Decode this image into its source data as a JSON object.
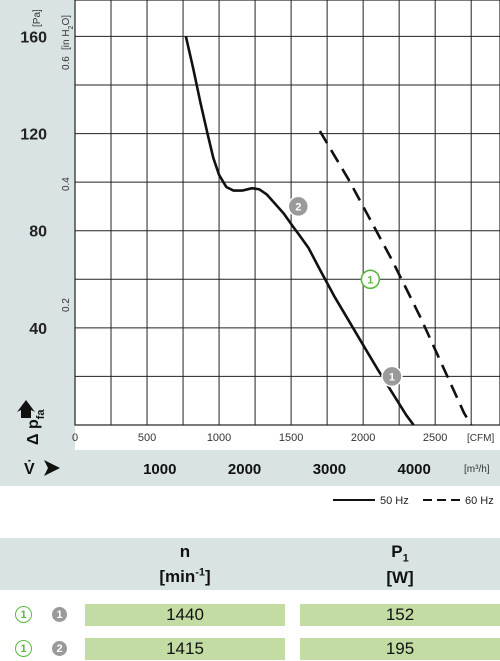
{
  "chart_data": {
    "type": "line",
    "title": "",
    "axes": {
      "y_primary": {
        "label": "Δ p_fa",
        "unit": "[Pa]",
        "ticks": [
          40,
          80,
          120,
          160
        ],
        "range": [
          0,
          175
        ]
      },
      "y_secondary": {
        "unit": "[in H2O]",
        "ticks": [
          "0.2",
          "0.4",
          "0.6"
        ]
      },
      "x_primary": {
        "unit": "[CFM]",
        "ticks": [
          0,
          500,
          1000,
          1500,
          2000,
          2500
        ],
        "range": [
          0,
          2950
        ]
      },
      "x_secondary": {
        "label": "V̇",
        "unit": "[m³/h]",
        "ticks": [
          1000,
          2000,
          3000,
          4000
        ]
      }
    },
    "y_secondary_factor": 249.089,
    "x_secondary_factor": 1.699,
    "grid": true,
    "series": [
      {
        "name": "50 Hz",
        "style": "solid",
        "points": [
          [
            770,
            160
          ],
          [
            820,
            147
          ],
          [
            870,
            133
          ],
          [
            920,
            120
          ],
          [
            960,
            110
          ],
          [
            1000,
            103
          ],
          [
            1050,
            98
          ],
          [
            1100,
            96.5
          ],
          [
            1160,
            96.5
          ],
          [
            1230,
            97.5
          ],
          [
            1280,
            97
          ],
          [
            1330,
            95
          ],
          [
            1390,
            91
          ],
          [
            1450,
            87
          ],
          [
            1510,
            82
          ],
          [
            1560,
            78
          ],
          [
            1620,
            73
          ],
          [
            1700,
            64
          ],
          [
            1800,
            53
          ],
          [
            1900,
            43
          ],
          [
            2000,
            33
          ],
          [
            2100,
            23
          ],
          [
            2200,
            13.5
          ],
          [
            2300,
            4
          ],
          [
            2350,
            0
          ]
        ]
      },
      {
        "name": "60 Hz",
        "style": "dashed",
        "points": [
          [
            1700,
            121
          ],
          [
            1800,
            111
          ],
          [
            1900,
            101
          ],
          [
            2000,
            90
          ],
          [
            2100,
            79
          ],
          [
            2200,
            68
          ],
          [
            2300,
            56
          ],
          [
            2400,
            44
          ],
          [
            2500,
            31
          ],
          [
            2600,
            18
          ],
          [
            2700,
            5
          ],
          [
            2750,
            0
          ]
        ]
      }
    ],
    "markers": [
      {
        "label": "1",
        "style": "filled-gray",
        "x": 2200,
        "y": 20
      },
      {
        "label": "2",
        "style": "filled-gray",
        "x": 1550,
        "y": 90
      },
      {
        "label": "1",
        "style": "outline-green",
        "x": 2050,
        "y": 60
      }
    ]
  },
  "legend": {
    "items": [
      {
        "label": "50 Hz"
      },
      {
        "label": "60 Hz"
      }
    ]
  },
  "table": {
    "col1": {
      "symbol": "n",
      "unit_prefix": "[min",
      "unit_sup": "-1",
      "unit_suffix": "]"
    },
    "col2": {
      "symbol": "P",
      "symbol_sub": "1",
      "unit": "[W]"
    },
    "rows": [
      {
        "marker_a": "1",
        "marker_b": "1",
        "n": "1440",
        "p1": "152"
      },
      {
        "marker_a": "1",
        "marker_b": "2",
        "n": "1415",
        "p1": "195"
      }
    ]
  },
  "labels": {
    "y_unit": "[Pa]",
    "y2_unit_a": "[in H",
    "y2_unit_sub": "2",
    "y2_unit_b": "O]",
    "x_unit": "[CFM]",
    "x2_unit": "[m³/h]",
    "y_title": "Δ p",
    "y_title_sub": "fa",
    "x2_title": "V̇"
  },
  "colors": {
    "band": "#d9e3e3",
    "grid": "#222222",
    "curve": "#111111",
    "marker_gray": "#9a9a9a",
    "marker_green": "#5bb840",
    "cell": "#c3dca3"
  }
}
